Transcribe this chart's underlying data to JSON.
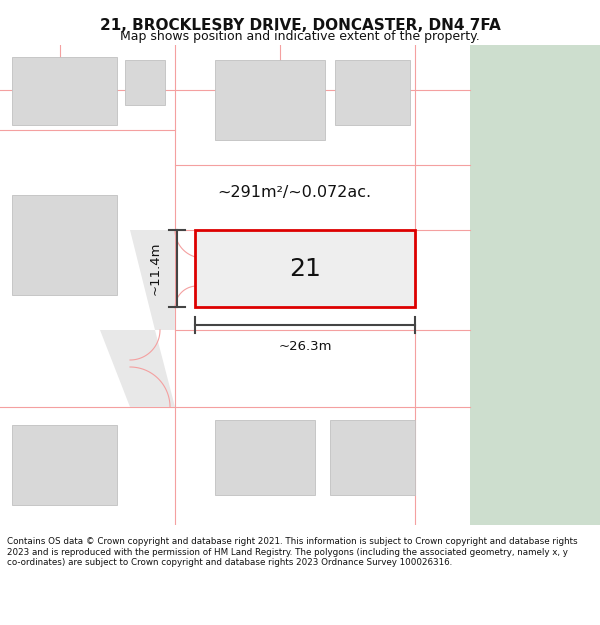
{
  "title": "21, BROCKLESBY DRIVE, DONCASTER, DN4 7FA",
  "subtitle": "Map shows position and indicative extent of the property.",
  "footer": "Contains OS data © Crown copyright and database right 2021. This information is subject to Crown copyright and database rights 2023 and is reproduced with the permission of HM Land Registry. The polygons (including the associated geometry, namely x, y co-ordinates) are subject to Crown copyright and database rights 2023 Ordnance Survey 100026316.",
  "bg_color": "#ffffff",
  "map_bg": "#ffffff",
  "green_panel_color": "#cddece",
  "boundary_color": "#f4a0a0",
  "road_color": "#d0d0d0",
  "dark_line_color": "#444444",
  "plot_outline_color": "#dd0000",
  "block_color": "#d8d8d8",
  "block_edge": "#c0c0c0",
  "area_text": "~291m²/~0.072ac.",
  "width_text": "~26.3m",
  "height_text": "~11.4m",
  "number_text": "21",
  "title_fontsize": 11,
  "subtitle_fontsize": 9
}
